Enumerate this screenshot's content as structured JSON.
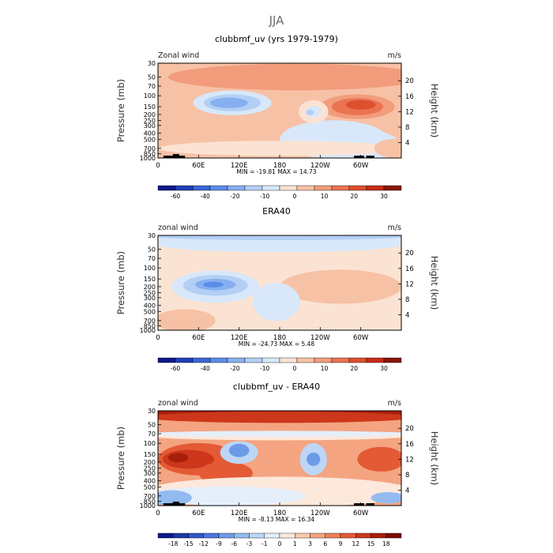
{
  "figure": {
    "title": "JJA",
    "colors": {
      "wind_scale": [
        "#0a1a8a",
        "#1f3fb8",
        "#3a66d8",
        "#5a8de8",
        "#86afef",
        "#b3cff5",
        "#d8e8fa",
        "#fbe3d3",
        "#f7c1a5",
        "#f29c7c",
        "#ea7452",
        "#dd4f2f",
        "#c52d18",
        "#8a1505"
      ],
      "diff_scale": [
        "#0a1a8a",
        "#1a3aa8",
        "#2f58c8",
        "#4a78dd",
        "#6d9ae8",
        "#93bbf0",
        "#bcd6f6",
        "#e4effb",
        "#fde8dc",
        "#f9c8ab",
        "#f4a480",
        "#ee7f57",
        "#e35a35",
        "#cd371b",
        "#a81e0c",
        "#7a0d03"
      ]
    }
  },
  "chart_data": [
    {
      "type": "heatmap",
      "title": "clubbmf_uv (yrs 1979-1979)",
      "left_label": "Zonal wind",
      "right_label": "m/s",
      "xlabel": "",
      "ylabel": "Pressure (mb)",
      "y2label": "Height (km)",
      "xlim": [
        0,
        360
      ],
      "x_ticks": [
        "0",
        "60E",
        "120E",
        "180",
        "120W",
        "60W"
      ],
      "y_ticks": [
        "30",
        "50",
        "70",
        "100",
        "150",
        "200",
        "250",
        "300",
        "400",
        "500",
        "700",
        "850",
        "1000"
      ],
      "y2_ticks": [
        "20",
        "16",
        "12",
        "8",
        "4"
      ],
      "stats": "MIN = -19.81   MAX =  14.73",
      "min": -19.81,
      "max": 14.73,
      "colorbar_labels": [
        "-60",
        "-40",
        "-20",
        "-10",
        "0",
        "10",
        "20",
        "30"
      ]
    },
    {
      "type": "heatmap",
      "title": "ERA40",
      "left_label": "zonal wind",
      "right_label": "m/s",
      "xlabel": "",
      "ylabel": "Pressure (mb)",
      "y2label": "Height (km)",
      "xlim": [
        0,
        360
      ],
      "x_ticks": [
        "0",
        "60E",
        "120E",
        "180",
        "120W",
        "60W"
      ],
      "y_ticks": [
        "30",
        "50",
        "70",
        "100",
        "150",
        "200",
        "250",
        "300",
        "400",
        "500",
        "700",
        "850",
        "1000"
      ],
      "y2_ticks": [
        "20",
        "16",
        "12",
        "8",
        "4"
      ],
      "stats": "MIN = -24.73   MAX =   5.48",
      "min": -24.73,
      "max": 5.48,
      "colorbar_labels": [
        "-60",
        "-40",
        "-20",
        "-10",
        "0",
        "10",
        "20",
        "30"
      ]
    },
    {
      "type": "heatmap",
      "title": "clubbmf_uv - ERA40",
      "left_label": "zonal wind",
      "right_label": "m/s",
      "xlabel": "",
      "ylabel": "Pressure (mb)",
      "y2label": "Height (km)",
      "xlim": [
        0,
        360
      ],
      "x_ticks": [
        "0",
        "60E",
        "120E",
        "180",
        "120W",
        "60W"
      ],
      "y_ticks": [
        "30",
        "50",
        "70",
        "100",
        "150",
        "200",
        "250",
        "300",
        "400",
        "500",
        "700",
        "850",
        "1000"
      ],
      "y2_ticks": [
        "20",
        "16",
        "12",
        "8",
        "4"
      ],
      "stats": "MIN = -8.13   MAX =  16.34",
      "min": -8.13,
      "max": 16.34,
      "colorbar_labels": [
        "-18",
        "-15",
        "-12",
        "-9",
        "-6",
        "-3",
        "-1",
        "0",
        "1",
        "3",
        "6",
        "9",
        "12",
        "15",
        "18"
      ]
    }
  ]
}
